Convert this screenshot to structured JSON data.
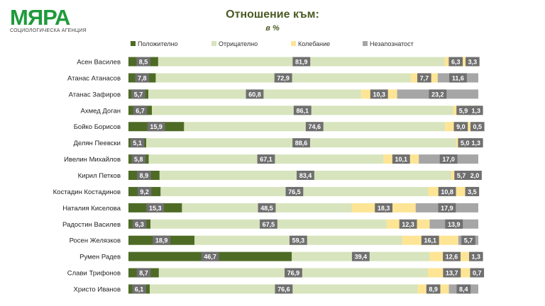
{
  "logo": {
    "name": "МЯРА",
    "tagline": "СОЦИОЛОГИЧЕСКА АГЕНЦИЯ"
  },
  "chart_data": {
    "type": "bar",
    "stacked": true,
    "orientation": "horizontal",
    "title": "Отношение към:",
    "subtitle": "в %",
    "legend_position": "top",
    "xlim": [
      0,
      100
    ],
    "categories": [
      "Асен Василев",
      "Атанас Атанасов",
      "Атанас Зафиров",
      "Ахмед Доган",
      "Бойко Борисов",
      "Делян Пеевски",
      "Ивелин Михайлов",
      "Кирил Петков",
      "Костадин Костадинов",
      "Наталия Киселова",
      "Радостин Василев",
      "Росен Желязков",
      "Румен Радев",
      "Слави Трифонов",
      "Христо Иванов"
    ],
    "series": [
      {
        "name": "Положително",
        "color": "#4e6b26",
        "values": [
          8.5,
          7.8,
          5.7,
          6.7,
          15.9,
          5.1,
          5.8,
          8.9,
          9.2,
          15.3,
          6.3,
          18.9,
          46.7,
          8.7,
          6.1
        ]
      },
      {
        "name": "Отрицателно",
        "color": "#d7e4bd",
        "values": [
          81.9,
          72.9,
          60.8,
          86.1,
          74.6,
          88.6,
          67.1,
          83.4,
          76.5,
          48.5,
          67.5,
          59.3,
          39.4,
          76.9,
          76.6
        ]
      },
      {
        "name": "Колебание",
        "color": "#fde595",
        "values": [
          6.3,
          7.7,
          10.3,
          5.9,
          9.0,
          5.0,
          10.1,
          5.7,
          10.8,
          18.3,
          12.3,
          16.1,
          12.6,
          13.7,
          8.9
        ]
      },
      {
        "name": "Незапознатост",
        "color": "#a6a6a6",
        "values": [
          3.3,
          11.6,
          23.2,
          1.3,
          0.5,
          1.3,
          17.0,
          2.0,
          3.5,
          17.9,
          13.9,
          5.7,
          1.3,
          0.7,
          8.4
        ]
      }
    ]
  }
}
